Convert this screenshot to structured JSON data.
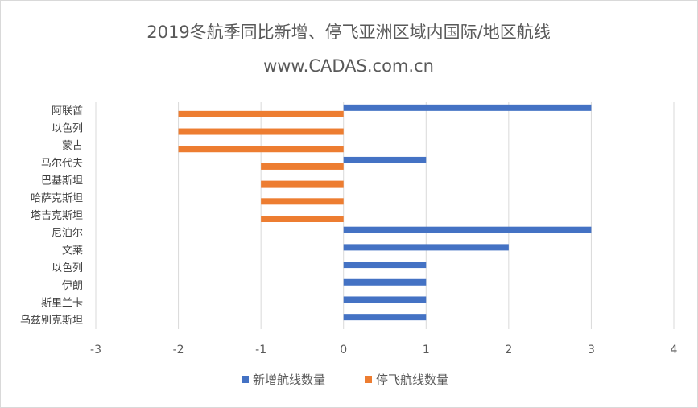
{
  "chart_data": {
    "type": "bar",
    "orientation": "horizontal",
    "title": "2019冬航季同比新增、停飞亚洲区域内国际/地区航线",
    "subtitle": "www.CADAS.com.cn",
    "xlabel": "",
    "ylabel": "",
    "xlim": [
      -3,
      4
    ],
    "x_ticks": [
      -3,
      -2,
      -1,
      0,
      1,
      2,
      3,
      4
    ],
    "grid": "vertical",
    "legend_position": "bottom",
    "categories": [
      "阿联酋",
      "以色列",
      "蒙古",
      "马尔代夫",
      "巴基斯坦",
      "哈萨克斯坦",
      "塔吉克斯坦",
      "尼泊尔",
      "文莱",
      "以色列",
      "伊朗",
      "斯里兰卡",
      "乌兹别克斯坦"
    ],
    "series": [
      {
        "name": "新增航线数量",
        "color": "#4472C4",
        "values": [
          3,
          0,
          0,
          1,
          0,
          0,
          0,
          3,
          2,
          1,
          1,
          1,
          1
        ]
      },
      {
        "name": "停飞航线数量",
        "color": "#ED7D31",
        "values": [
          -2,
          -2,
          -2,
          -1,
          -1,
          -1,
          -1,
          0,
          0,
          0,
          0,
          0,
          0
        ]
      }
    ]
  }
}
